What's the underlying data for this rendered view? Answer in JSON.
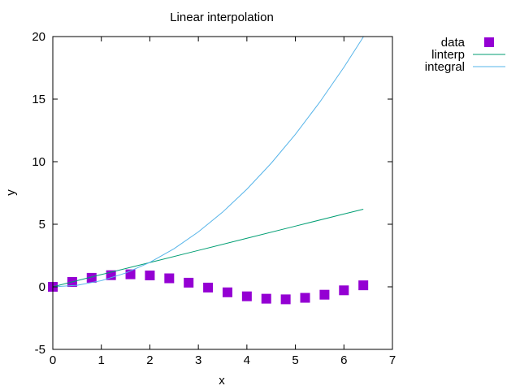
{
  "chart_data": {
    "type": "line",
    "title": "Linear interpolation",
    "xlabel": "x",
    "ylabel": "y",
    "xlim": [
      0,
      7
    ],
    "ylim": [
      -5,
      20
    ],
    "xticks": [
      0,
      1,
      2,
      3,
      4,
      5,
      6,
      7
    ],
    "yticks": [
      -5,
      0,
      5,
      10,
      15,
      20
    ],
    "grid": false,
    "legend_position": "outside-top-right",
    "series": [
      {
        "name": "data",
        "kind": "scatter",
        "marker": "square",
        "color": "#9400d3",
        "x": [
          0,
          0.4,
          0.8,
          1.2,
          1.6,
          2.0,
          2.4,
          2.8,
          3.2,
          3.6,
          4.0,
          4.4,
          4.8,
          5.2,
          5.6,
          6.0,
          6.4
        ],
        "y": [
          0,
          0.39,
          0.72,
          0.93,
          1.0,
          0.91,
          0.68,
          0.33,
          -0.06,
          -0.44,
          -0.76,
          -0.95,
          -1.0,
          -0.88,
          -0.63,
          -0.28,
          0.12
        ]
      },
      {
        "name": "linterp",
        "kind": "line",
        "color": "#009e73",
        "x": [
          0,
          1,
          2,
          3,
          4,
          5,
          6,
          6.4
        ],
        "y": [
          0,
          0.98,
          1.94,
          2.91,
          3.88,
          4.85,
          5.82,
          6.2
        ]
      },
      {
        "name": "integral",
        "kind": "line",
        "color": "#56b4e9",
        "x": [
          0,
          0.5,
          1,
          1.5,
          2,
          2.5,
          3,
          3.5,
          4,
          4.5,
          5,
          5.5,
          6,
          6.4
        ],
        "y": [
          0,
          0.12,
          0.49,
          1.1,
          1.95,
          3.05,
          4.39,
          5.97,
          7.8,
          9.87,
          12.19,
          14.75,
          17.55,
          19.97
        ]
      }
    ]
  }
}
